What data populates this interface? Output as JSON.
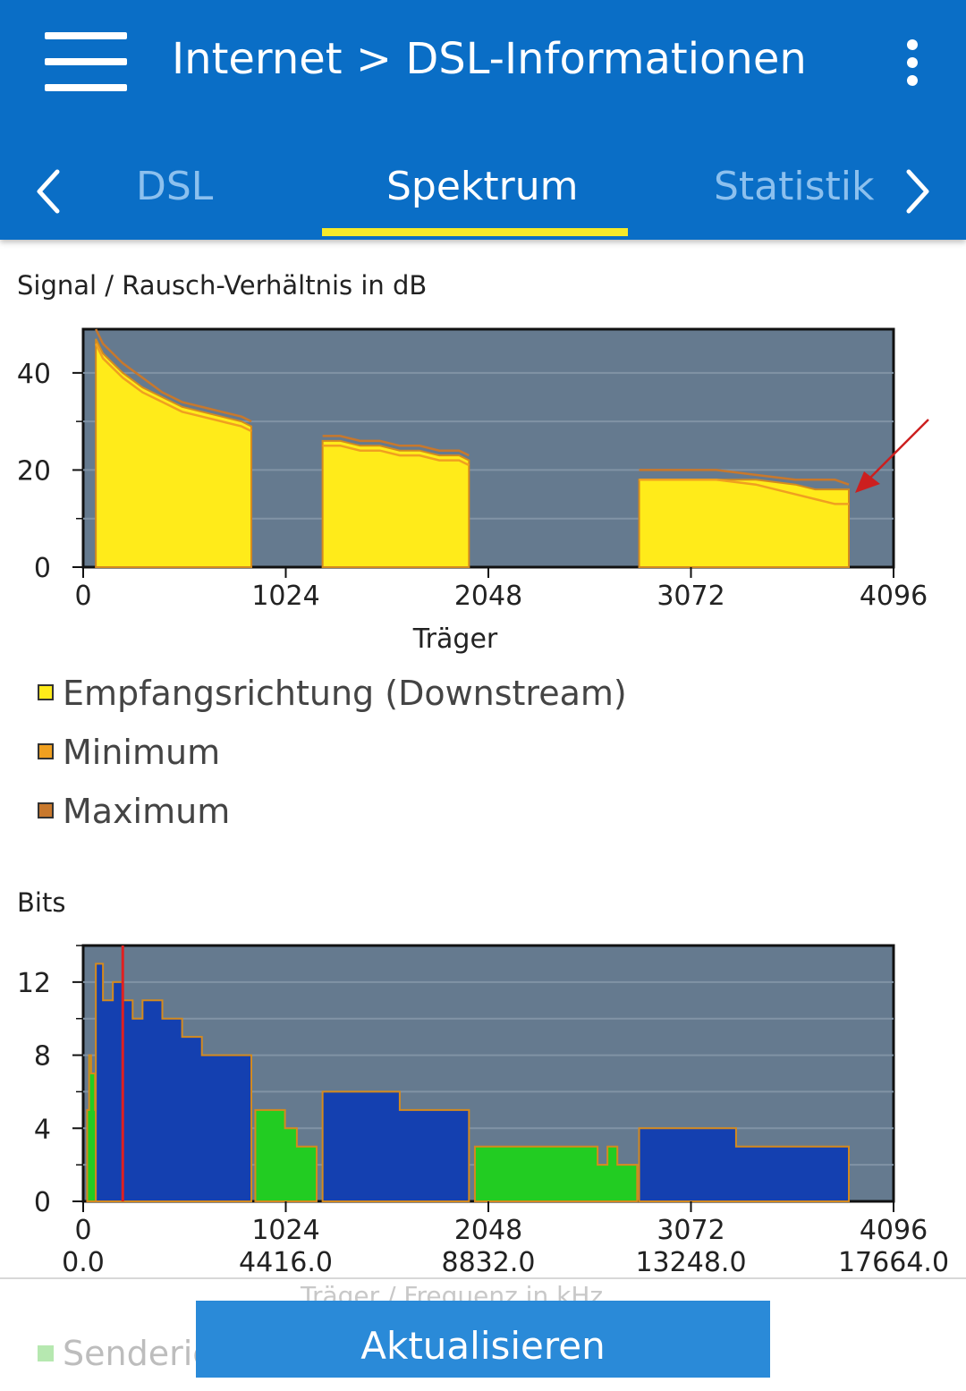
{
  "header": {
    "title": "Internet > DSL-Informationen",
    "menu_icon": "hamburger-menu-icon",
    "more_icon": "more-vert-icon"
  },
  "tabs": [
    {
      "label": "DSL",
      "active": false
    },
    {
      "label": "Spektrum",
      "active": true
    },
    {
      "label": "Statistik",
      "active": false
    }
  ],
  "colors": {
    "appbar": "#0a6ec6",
    "tab_indicator": "#f6ea2a",
    "plot_bg": "#657a8f",
    "downstream": "#ffeb1a",
    "minimum": "#f0a020",
    "maximum": "#c8782c",
    "bits_blue": "#1440b0",
    "bits_green": "#22cc22",
    "button": "#2a8ad8"
  },
  "snr_chart": {
    "title": "Signal / Rausch-Verhältnis in dB",
    "xlabel": "Träger",
    "x_ticks": [
      "0",
      "1024",
      "2048",
      "3072",
      "4096"
    ],
    "y_ticks": [
      "0",
      "20",
      "40"
    ],
    "legend": [
      {
        "label": "Empfangsrichtung (Downstream)",
        "color": "#ffeb1a"
      },
      {
        "label": "Minimum",
        "color": "#f0a020"
      },
      {
        "label": "Maximum",
        "color": "#c8782c"
      }
    ]
  },
  "bits_chart": {
    "title": "Bits",
    "xlabel": "Träger / Frequenz in kHz",
    "x_ticks": [
      "0",
      "1024",
      "2048",
      "3072",
      "4096"
    ],
    "x_ticks_khz": [
      "0.0",
      "4416.0",
      "8832.0",
      "13248.0",
      "17664.0"
    ],
    "y_ticks": [
      "0",
      "4",
      "8",
      "12"
    ],
    "legend_partial": "Senderic"
  },
  "chart_data": [
    {
      "type": "area",
      "title": "Signal / Rausch-Verhältnis in dB",
      "xlabel": "Träger",
      "ylabel": "",
      "xlim": [
        0,
        4096
      ],
      "ylim": [
        0,
        49
      ],
      "grid": true,
      "series": [
        {
          "name": "Empfangsrichtung (Downstream)",
          "segments": [
            {
              "x": [
                64,
                100,
                200,
                300,
                400,
                500,
                600,
                700,
                800,
                850
              ],
              "y": [
                47,
                44,
                40,
                37,
                35,
                33,
                32,
                31,
                30,
                29
              ]
            },
            {
              "x": [
                1210,
                1300,
                1400,
                1500,
                1600,
                1700,
                1800,
                1900,
                1950
              ],
              "y": [
                26,
                26,
                25,
                25,
                24,
                24,
                23,
                23,
                22
              ]
            },
            {
              "x": [
                2810,
                3000,
                3200,
                3400,
                3600,
                3700,
                3800,
                3870
              ],
              "y": [
                18,
                18,
                18,
                18,
                17,
                16,
                16,
                16
              ]
            }
          ]
        },
        {
          "name": "Minimum",
          "segments": [
            {
              "x": [
                64,
                100,
                200,
                300,
                400,
                500,
                600,
                700,
                800,
                850
              ],
              "y": [
                46,
                43,
                39,
                36,
                34,
                32,
                31,
                30,
                29,
                28
              ]
            },
            {
              "x": [
                1210,
                1300,
                1400,
                1500,
                1600,
                1700,
                1800,
                1900,
                1950
              ],
              "y": [
                25,
                25,
                24,
                24,
                23,
                23,
                22,
                22,
                21
              ]
            },
            {
              "x": [
                2810,
                3000,
                3200,
                3400,
                3600,
                3700,
                3800,
                3870
              ],
              "y": [
                18,
                18,
                18,
                17,
                15,
                14,
                13,
                13
              ]
            }
          ]
        },
        {
          "name": "Maximum",
          "segments": [
            {
              "x": [
                64,
                100,
                200,
                300,
                400,
                500,
                600,
                700,
                800,
                850
              ],
              "y": [
                49,
                46,
                42,
                39,
                36,
                34,
                33,
                32,
                31,
                30
              ]
            },
            {
              "x": [
                1210,
                1300,
                1400,
                1500,
                1600,
                1700,
                1800,
                1900,
                1950
              ],
              "y": [
                27,
                27,
                26,
                26,
                25,
                25,
                24,
                24,
                23
              ]
            },
            {
              "x": [
                2810,
                3000,
                3200,
                3400,
                3600,
                3700,
                3800,
                3870
              ],
              "y": [
                20,
                20,
                20,
                19,
                18,
                18,
                18,
                17
              ]
            }
          ]
        }
      ]
    },
    {
      "type": "area",
      "title": "Bits",
      "xlabel": "Träger / Frequenz in kHz",
      "ylabel": "",
      "xlim": [
        0,
        4096
      ],
      "ylim": [
        0,
        14
      ],
      "grid": true,
      "series": [
        {
          "name": "Senderic",
          "color": "#22cc22",
          "segments": [
            {
              "x": [
                20,
                30,
                40,
                60,
                64
              ],
              "y": [
                5,
                8,
                7,
                5,
                0
              ]
            },
            {
              "x": [
                870,
                1000,
                1020,
                1080,
                1180
              ],
              "y": [
                5,
                5,
                4,
                3,
                2
              ]
            },
            {
              "x": [
                1980,
                2100,
                2200,
                2500,
                2600,
                2650,
                2700,
                2800
              ],
              "y": [
                3,
                3,
                3,
                3,
                2,
                3,
                2,
                2
              ]
            }
          ]
        },
        {
          "name": "Empfangsrichtung (Downstream)",
          "color": "#1440b0",
          "segments": [
            {
              "x": [
                64,
                80,
                100,
                150,
                200,
                250,
                300,
                400,
                500,
                600,
                700,
                800,
                850
              ],
              "y": [
                13,
                13,
                11,
                12,
                11,
                10,
                11,
                10,
                9,
                8,
                8,
                8,
                7
              ]
            },
            {
              "x": [
                1210,
                1300,
                1400,
                1500,
                1600,
                1700,
                1800,
                1900,
                1950
              ],
              "y": [
                6,
                6,
                6,
                6,
                5,
                5,
                5,
                5,
                5
              ]
            },
            {
              "x": [
                2810,
                2900,
                3000,
                3100,
                3200,
                3300,
                3400,
                3600,
                3800,
                3870
              ],
              "y": [
                4,
                4,
                4,
                4,
                4,
                3,
                3,
                3,
                3,
                2
              ]
            }
          ]
        }
      ],
      "marker": {
        "x": 200,
        "color": "#e02020"
      }
    }
  ]
}
